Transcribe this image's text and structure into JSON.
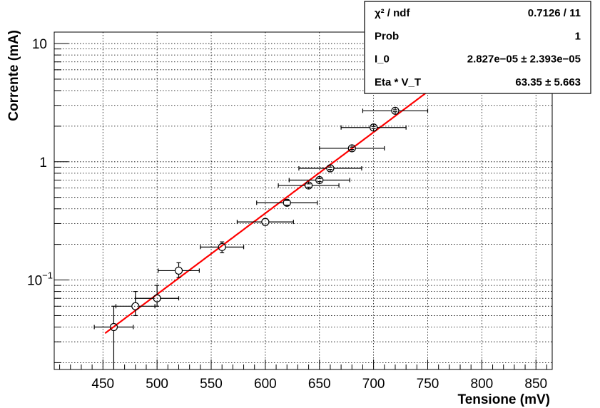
{
  "chart_data": {
    "type": "scatter",
    "xlabel": "Tensione (mV)",
    "ylabel": "Corrente (mA)",
    "xlim": [
      405,
      865
    ],
    "ylim": [
      0.0175,
      12.5
    ],
    "y_scale": "log",
    "grid": true,
    "x_ticks": [
      450,
      500,
      550,
      600,
      650,
      700,
      750,
      800,
      850
    ],
    "x_tick_labels": [
      "450",
      "500",
      "550",
      "600",
      "650",
      "700",
      "750",
      "800",
      "850"
    ],
    "y_ticks": [
      {
        "value": 0.1,
        "base": "10",
        "exp": "−1"
      },
      {
        "value": 1,
        "base": "1",
        "exp": ""
      },
      {
        "value": 10,
        "base": "10",
        "exp": ""
      }
    ],
    "points": [
      {
        "x": 460,
        "y": 0.04,
        "xerr": 18,
        "yerr_low": 0.04,
        "yerr_high": 0.02
      },
      {
        "x": 480,
        "y": 0.06,
        "xerr": 18,
        "yerr_low": 0.01,
        "yerr_high": 0.02
      },
      {
        "x": 500,
        "y": 0.07,
        "xerr": 20,
        "yerr_low": 0.01,
        "yerr_high": 0.02
      },
      {
        "x": 520,
        "y": 0.12,
        "xerr": 19,
        "yerr_low": 0.015,
        "yerr_high": 0.02
      },
      {
        "x": 560,
        "y": 0.19,
        "xerr": 20,
        "yerr_low": 0.02,
        "yerr_high": 0.02
      },
      {
        "x": 600,
        "y": 0.31,
        "xerr": 26,
        "yerr_low": 0.02,
        "yerr_high": 0.02
      },
      {
        "x": 620,
        "y": 0.45,
        "xerr": 28,
        "yerr_low": 0.02,
        "yerr_high": 0.02
      },
      {
        "x": 640,
        "y": 0.63,
        "xerr": 28,
        "yerr_low": 0.02,
        "yerr_high": 0.02
      },
      {
        "x": 650,
        "y": 0.7,
        "xerr": 28,
        "yerr_low": 0.02,
        "yerr_high": 0.02
      },
      {
        "x": 660,
        "y": 0.88,
        "xerr": 29,
        "yerr_low": 0.02,
        "yerr_high": 0.02
      },
      {
        "x": 680,
        "y": 1.3,
        "xerr": 30,
        "yerr_low": 0.03,
        "yerr_high": 0.03
      },
      {
        "x": 700,
        "y": 1.95,
        "xerr": 30,
        "yerr_low": 0.04,
        "yerr_high": 0.04
      },
      {
        "x": 720,
        "y": 2.7,
        "xerr": 30,
        "yerr_low": 0.05,
        "yerr_high": 0.05
      }
    ],
    "fit": {
      "model": "I_0 * (exp(V / (Eta * V_T)) - 1)",
      "I_0": 2.827e-05,
      "EtaVT": 63.35,
      "x_range": [
        452,
        750
      ],
      "color": "#ff0000"
    },
    "stats_box": {
      "rows": [
        {
          "label": "χ² / ndf",
          "value": "0.7126 / 11"
        },
        {
          "label": "Prob",
          "value": "1"
        },
        {
          "label": "I_0",
          "value": "2.827e−05 ± 2.393e−05"
        },
        {
          "label": "Eta * V_T",
          "value": "63.35 ± 5.663"
        }
      ]
    }
  }
}
